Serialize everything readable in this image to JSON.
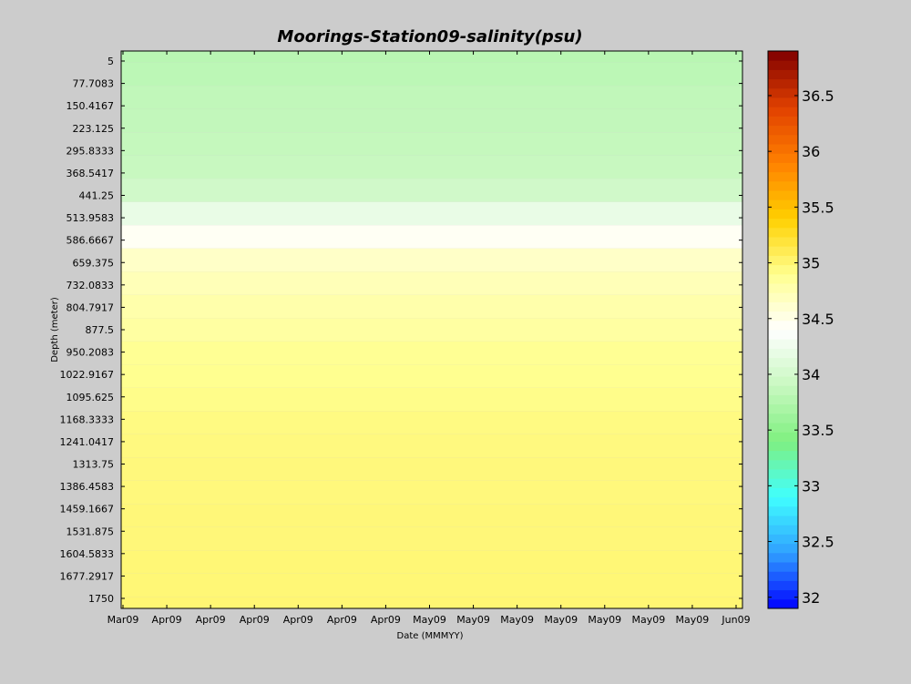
{
  "chart_data": {
    "type": "heatmap",
    "title": "Moorings-Station09-salinity(psu)",
    "xlabel": "Date (MMMYY)",
    "ylabel": "Depth (meter)",
    "x_tick_labels": [
      "Mar09",
      "Apr09",
      "Apr09",
      "Apr09",
      "Apr09",
      "Apr09",
      "Apr09",
      "May09",
      "May09",
      "May09",
      "May09",
      "May09",
      "May09",
      "May09",
      "Jun09"
    ],
    "y_tick_labels": [
      "5",
      "77.7083",
      "150.4167",
      "223.125",
      "295.8333",
      "368.5417",
      "441.25",
      "513.9583",
      "586.6667",
      "659.375",
      "732.0833",
      "804.7917",
      "877.5",
      "950.2083",
      "1022.9167",
      "1095.625",
      "1168.3333",
      "1241.0417",
      "1313.75",
      "1386.4583",
      "1459.1667",
      "1531.875",
      "1604.5833",
      "1677.2917",
      "1750"
    ],
    "y_values": [
      5,
      77.7083,
      150.4167,
      223.125,
      295.8333,
      368.5417,
      441.25,
      513.9583,
      586.6667,
      659.375,
      732.0833,
      804.7917,
      877.5,
      950.2083,
      1022.9167,
      1095.625,
      1168.3333,
      1241.0417,
      1313.75,
      1386.4583,
      1459.1667,
      1531.875,
      1604.5833,
      1677.2917,
      1750
    ],
    "y_reversed": true,
    "colorbar": {
      "range": [
        31.9,
        36.9
      ],
      "ticks": [
        32,
        32.5,
        33,
        33.5,
        34,
        34.5,
        35,
        35.5,
        36,
        36.5
      ],
      "colormap": [
        "#0000ff",
        "#30a0ff",
        "#40ffff",
        "#7ff080",
        "#c8f8c0",
        "#ffffff",
        "#ffff90",
        "#ffd000",
        "#ff8000",
        "#e04000",
        "#800000"
      ]
    },
    "profile_psu": [
      33.8,
      33.82,
      33.85,
      33.86,
      33.88,
      33.9,
      33.97,
      34.2,
      34.45,
      34.65,
      34.72,
      34.78,
      34.82,
      34.88,
      34.9,
      34.92,
      34.95,
      34.96,
      34.97,
      34.97,
      34.98,
      34.98,
      34.99,
      34.99,
      35.0
    ]
  }
}
